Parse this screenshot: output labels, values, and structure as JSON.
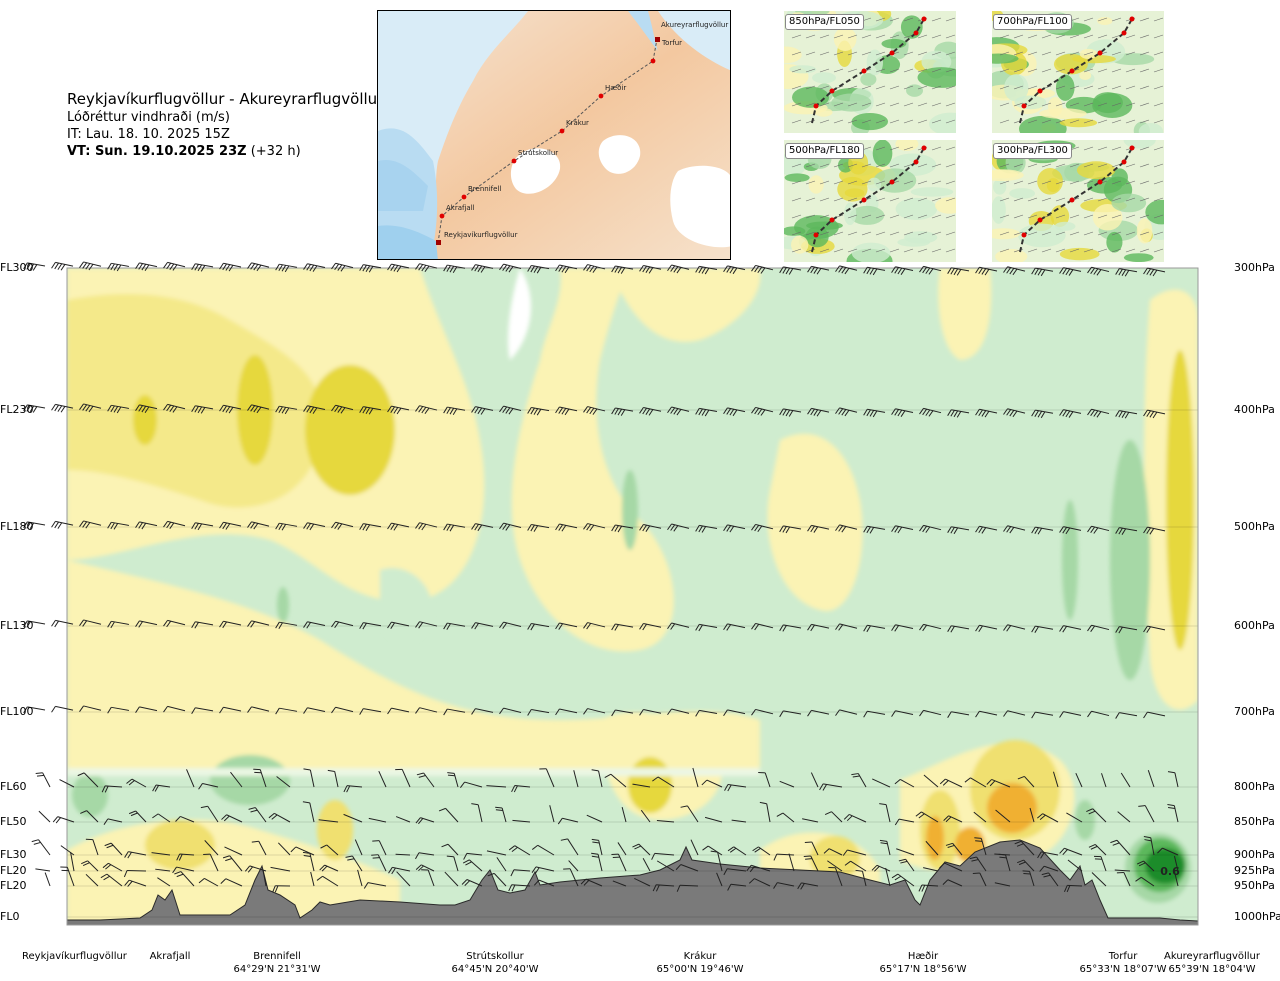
{
  "header": {
    "route": "Reykjavíkurflugvöllur - Akureyrarflugvöllur",
    "parameter": "Lóðréttur vindhraði (m/s)",
    "issue_time": "IT: Lau. 18. 10. 2025 15Z",
    "valid_time": "VT: Sun. 19.10.2025 23Z",
    "lead_time": "(+32 h)"
  },
  "route_map": {
    "waypoints": [
      "Akureyrarflugvöllur",
      "Torfur",
      "Hæðir",
      "Krákur",
      "Strútskollur",
      "Brennifell",
      "Akrafjall",
      "Reykjavíkurflugvöllur"
    ]
  },
  "level_maps": [
    "850hPa/FL050",
    "700hPa/FL100",
    "500hPa/FL180",
    "300hPa/FL300"
  ],
  "levels": [
    {
      "fl": "FL300",
      "hpa": "300hPa"
    },
    {
      "fl": "FL230",
      "hpa": "400hPa"
    },
    {
      "fl": "FL180",
      "hpa": "500hPa"
    },
    {
      "fl": "FL130",
      "hpa": "600hPa"
    },
    {
      "fl": "FL100",
      "hpa": "700hPa"
    },
    {
      "fl": "FL60",
      "hpa": "800hPa"
    },
    {
      "fl": "FL50",
      "hpa": "850hPa"
    },
    {
      "fl": "FL30",
      "hpa": "900hPa"
    },
    {
      "fl": "FL20",
      "hpa": "925hPa"
    },
    {
      "fl": "FL20",
      "hpa": "950hPa"
    },
    {
      "fl": "FL0",
      "hpa": "1000hPa"
    }
  ],
  "locations": [
    {
      "name": "Reykjavíkurflugvöllur",
      "coord": ""
    },
    {
      "name": "Akrafjall",
      "coord": ""
    },
    {
      "name": "Brennifell",
      "coord": "64°29'N 21°31'W"
    },
    {
      "name": "Strútskollur",
      "coord": "64°45'N 20°40'W"
    },
    {
      "name": "Krákur",
      "coord": "65°00'N 19°46'W"
    },
    {
      "name": "Hæðir",
      "coord": "65°17'N 18°56'W"
    },
    {
      "name": "Torfur",
      "coord": "65°33'N 18°07'W"
    },
    {
      "name": "Akureyrarflugvöllur",
      "coord": "65°39'N 18°04'W"
    }
  ],
  "annotation": "0.6",
  "colors": {
    "up_weak": "#fbf3b4",
    "up_mod": "#f0e070",
    "up_strong": "#e6d83c",
    "up_orange": "#f0b030",
    "down_weak": "#cfeccf",
    "down_mod": "#a6d8a6",
    "down_strong": "#5cb85c",
    "down_dark": "#1e8c2a",
    "terrain": "#7a7a7a"
  },
  "chart_data": {
    "type": "heatmap",
    "title": "Lóðréttur vindhraði (m/s)",
    "x_categories": [
      "Reykjavíkurflugvöllur",
      "Akrafjall",
      "Brennifell",
      "Strútskollur",
      "Krákur",
      "Hæðir",
      "Torfur",
      "Akureyrarflugvöllur"
    ],
    "y_levels_hpa": [
      1000,
      950,
      925,
      900,
      850,
      800,
      700,
      600,
      500,
      400,
      300
    ],
    "y_levels_fl": [
      "FL0",
      "FL20",
      "FL20",
      "FL30",
      "FL50",
      "FL60",
      "FL100",
      "FL130",
      "FL180",
      "FL230",
      "FL300"
    ],
    "ylim_hpa": [
      1000,
      300
    ],
    "max_value_label": 0.6
  }
}
